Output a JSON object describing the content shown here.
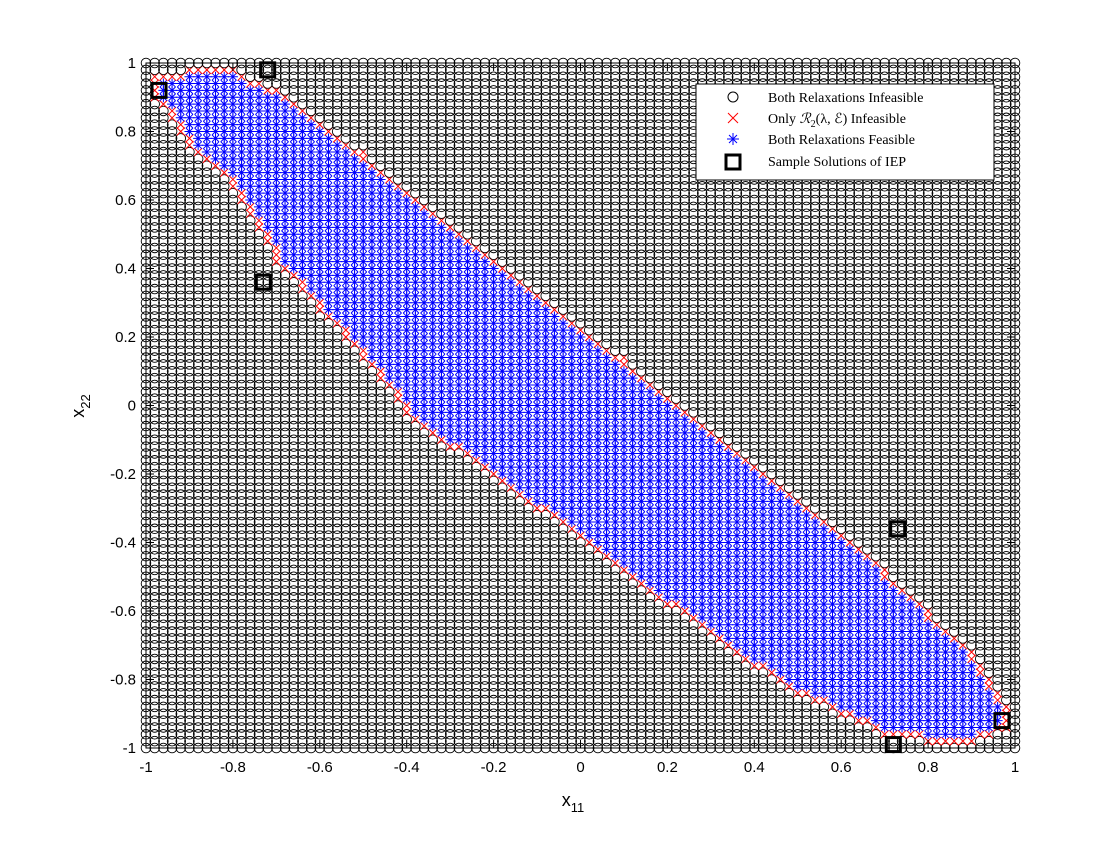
{
  "chart_data": {
    "type": "scatter",
    "xlabel": "x",
    "xlabel_sub": "11",
    "ylabel": "x",
    "ylabel_sub": "22",
    "xlim": [
      -1,
      1
    ],
    "ylim": [
      -1,
      1
    ],
    "xticks": [
      -1,
      -0.8,
      -0.6,
      -0.4,
      -0.2,
      0,
      0.2,
      0.4,
      0.6,
      0.8,
      1
    ],
    "yticks": [
      -1,
      -0.8,
      -0.6,
      -0.4,
      -0.2,
      0,
      0.2,
      0.4,
      0.6,
      0.8,
      1
    ],
    "xtick_labels": [
      "-1",
      "-0.8",
      "-0.6",
      "-0.4",
      "-0.2",
      "0",
      "0.2",
      "0.4",
      "0.6",
      "0.8",
      "1"
    ],
    "ytick_labels": [
      "-1",
      "-0.8",
      "-0.6",
      "-0.4",
      "-0.2",
      "0",
      "0.2",
      "0.4",
      "0.6",
      "0.8",
      "1"
    ],
    "grid": false,
    "legend_position": "top-right",
    "grid_values": {
      "start": -1,
      "end": 1,
      "step": 0.02
    },
    "series": [
      {
        "name": "Both Relaxations Infeasible",
        "marker": "circle",
        "color": "#000000",
        "rule": "all remaining grid points"
      },
      {
        "name": "Only R2(λ,E) Infeasible",
        "marker": "x",
        "color": "#ff0000",
        "rule": "points on the band boundary"
      },
      {
        "name": "Both Relaxations Feasible",
        "marker": "asterisk",
        "color": "#0000ff",
        "rule": "points inside the diagonal band from (-0.95,0.95) to (0.95,-0.95)"
      },
      {
        "name": "Sample Solutions of IEP",
        "marker": "square",
        "color": "#000000",
        "points": [
          [
            -0.97,
            0.92
          ],
          [
            -0.72,
            0.98
          ],
          [
            -0.73,
            0.36
          ],
          [
            0.73,
            -0.36
          ],
          [
            0.97,
            -0.92
          ],
          [
            0.72,
            -0.99
          ]
        ]
      }
    ],
    "band_boundary": {
      "x": [
        -0.98,
        -0.9,
        -0.8,
        -0.7,
        -0.6,
        -0.5,
        -0.4,
        -0.3,
        -0.2,
        -0.1,
        0,
        0.1,
        0.2,
        0.3,
        0.4,
        0.5,
        0.6,
        0.7,
        0.8,
        0.9,
        0.98
      ],
      "upper": [
        0.96,
        0.98,
        0.98,
        0.92,
        0.82,
        0.74,
        0.62,
        0.52,
        0.42,
        0.32,
        0.22,
        0.14,
        0.02,
        -0.08,
        -0.18,
        -0.28,
        -0.38,
        -0.48,
        -0.6,
        -0.72,
        -0.88
      ],
      "lower": [
        0.9,
        0.76,
        0.64,
        0.42,
        0.28,
        0.14,
        -0.02,
        -0.12,
        -0.2,
        -0.3,
        -0.38,
        -0.48,
        -0.58,
        -0.66,
        -0.76,
        -0.84,
        -0.9,
        -0.96,
        -0.98,
        -0.98,
        -0.94
      ]
    }
  },
  "legend_labels": {
    "item1": "Both Relaxations Infeasible",
    "item2_prefix": "Only ",
    "item2_symbol": "ℛ",
    "item2_sub": "2",
    "item2_args": "(λ, ℰ)",
    "item2_suffix": " Infeasible",
    "item3": "Both Relaxations Feasible",
    "item4": "Sample Solutions of IEP"
  }
}
